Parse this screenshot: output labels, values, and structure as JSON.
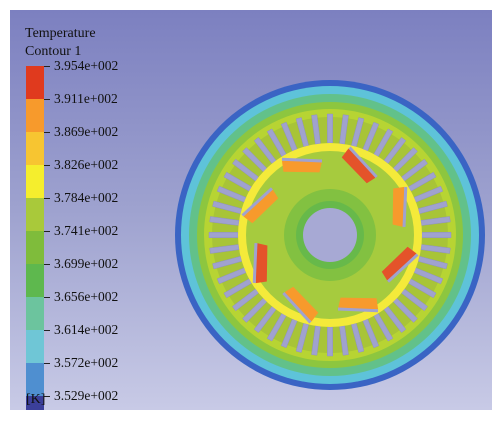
{
  "legend": {
    "title_line1": "Temperature",
    "title_line2": "Contour 1",
    "unit": "[K]",
    "levels": [
      "3.954e+002",
      "3.911e+002",
      "3.869e+002",
      "3.826e+002",
      "3.784e+002",
      "3.741e+002",
      "3.699e+002",
      "3.656e+002",
      "3.614e+002",
      "3.572e+002",
      "3.529e+002"
    ],
    "colors": [
      "#e03a1e",
      "#f79a2c",
      "#f7c531",
      "#f5ee2d",
      "#a9c93a",
      "#7fbc3b",
      "#5eb84e",
      "#6cc49e",
      "#6fc6d6",
      "#4f8fd0",
      "#3b3f9a"
    ]
  },
  "contour": {
    "outer_ring_colors": [
      "#3a64c4",
      "#5ec3d9",
      "#62c18a",
      "#8dc63f",
      "#b7d433"
    ],
    "stator_color": "#a8c437",
    "slot_color": "#a0a2cf",
    "rotor_color": "#a6cb3e",
    "hub_color": "#82c141",
    "hotspot_color": "#f79a2c",
    "magnet_color": "#f0b43a",
    "shaft_color": "#a7a9d4"
  }
}
